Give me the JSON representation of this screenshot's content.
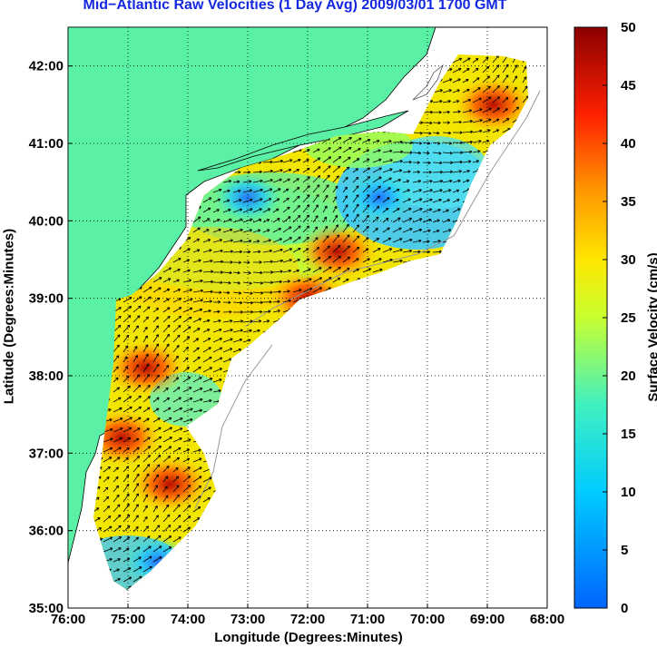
{
  "chart": {
    "title": "Mid−Atlantic Raw Velocities (1 Day Avg) 2009/03/01 1700 GMT",
    "xlabel": "Longitude (Degrees:Minutes)",
    "ylabel": "Latitude (Degrees:Minutes)",
    "colorbar_label": "Surface Velocity (cm/s)",
    "x_ticks": [
      "76:00",
      "75:00",
      "74:00",
      "73:00",
      "72:00",
      "71:00",
      "70:00",
      "69:00",
      "68:00"
    ],
    "y_ticks": [
      "35:00",
      "36:00",
      "37:00",
      "38:00",
      "39:00",
      "40:00",
      "41:00",
      "42:00"
    ],
    "colorbar_ticks": [
      "0",
      "5",
      "10",
      "15",
      "20",
      "25",
      "30",
      "35",
      "40",
      "45",
      "50"
    ]
  },
  "chart_data": {
    "type": "heatmap",
    "title": "Mid−Atlantic Raw Velocities (1 Day Avg) 2009/03/01 1700 GMT",
    "xlabel": "Longitude (Degrees:Minutes)",
    "ylabel": "Latitude (Degrees:Minutes)",
    "xlim": [
      -76,
      -68
    ],
    "ylim": [
      35,
      42.5
    ],
    "grid": true,
    "colorbar": {
      "label": "Surface Velocity (cm/s)",
      "range": [
        0,
        50
      ],
      "colormap": "jet"
    },
    "land_color": "#5af0a5",
    "hotspots": [
      {
        "lon": -75.1,
        "lat": 37.2,
        "speed": 48
      },
      {
        "lon": -74.7,
        "lat": 38.1,
        "speed": 40
      },
      {
        "lon": -74.3,
        "lat": 36.6,
        "speed": 38
      },
      {
        "lon": -71.5,
        "lat": 39.6,
        "speed": 40
      },
      {
        "lon": -68.9,
        "lat": 41.5,
        "speed": 50
      },
      {
        "lon": -72.0,
        "lat": 39.0,
        "speed": 35
      }
    ],
    "calm_zones": [
      {
        "lon": -70.8,
        "lat": 40.3,
        "speed": 4
      },
      {
        "lon": -73.0,
        "lat": 40.3,
        "speed": 10
      },
      {
        "lon": -74.5,
        "lat": 35.6,
        "speed": 6
      }
    ]
  }
}
